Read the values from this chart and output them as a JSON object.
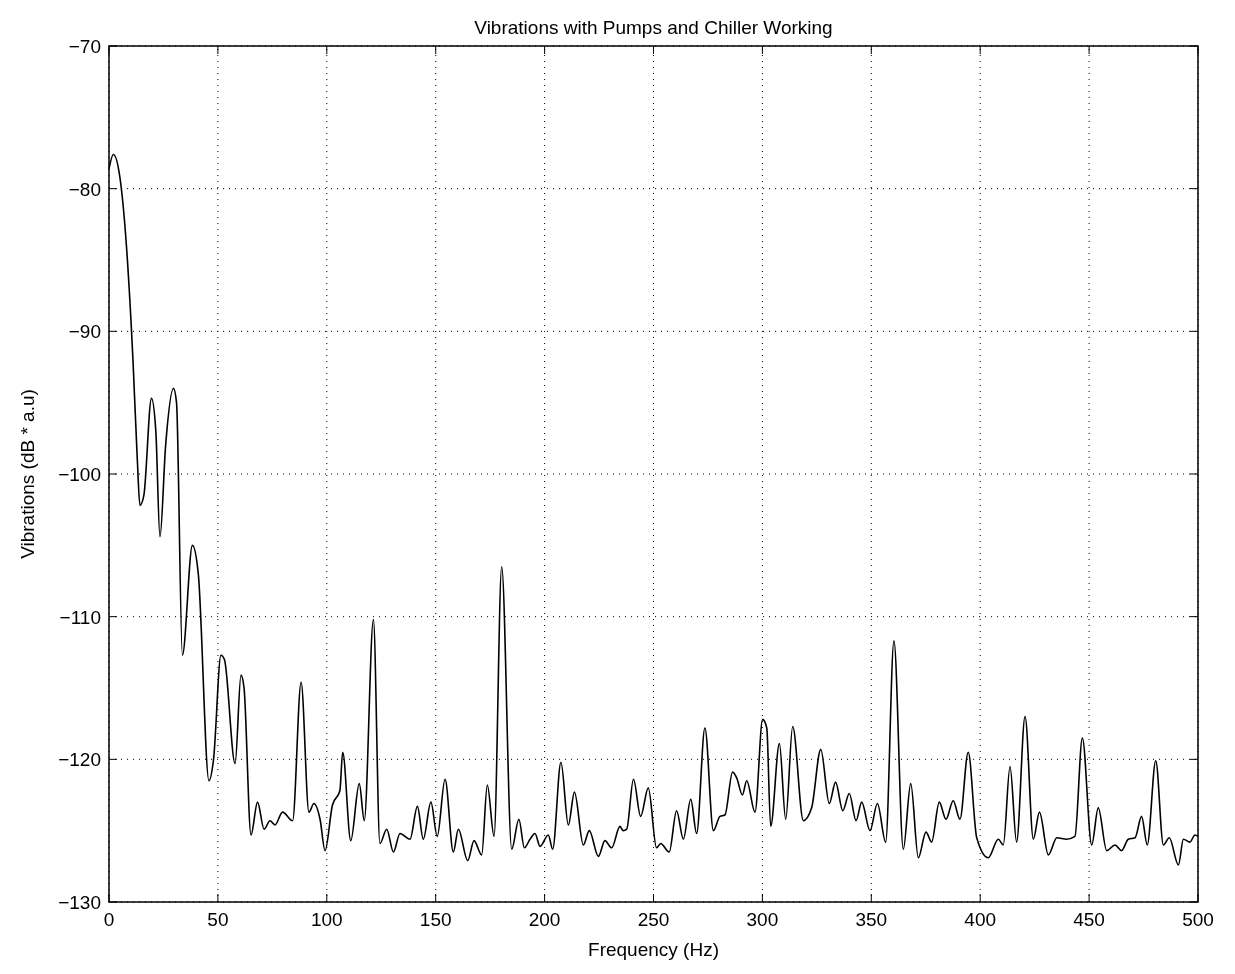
{
  "chart_data": {
    "type": "line",
    "title": "Vibrations with Pumps and Chiller Working",
    "xlabel": "Frequency (Hz)",
    "ylabel": "Vibrations (dB * a.u)",
    "xlim": [
      0,
      500
    ],
    "xticks": [
      0,
      50,
      100,
      150,
      200,
      250,
      300,
      350,
      400,
      450,
      500
    ],
    "ylim": [
      -130,
      -70
    ],
    "yticks": [
      -130,
      -120,
      -110,
      -100,
      -90,
      -80,
      -70
    ],
    "grid": true,
    "marker": "none",
    "line_style": "solid",
    "series": [
      {
        "color": "#000000",
        "x": [
          0,
          2,
          5,
          8,
          11,
          13,
          14.2,
          16,
          19.5,
          21.5,
          23.4,
          26,
          29.6,
          31,
          33.7,
          38.3,
          41,
          45.9,
          48,
          51.4,
          53,
          57.9,
          60.6,
          62,
          65.2,
          68.2,
          71.2,
          73.9,
          76.2,
          79.7,
          84.3,
          88.2,
          91.8,
          94.1,
          96.9,
          99.2,
          102.6,
          106,
          107.3,
          111,
          114.9,
          117.2,
          121.4,
          124.4,
          127.5,
          130.6,
          133.6,
          138.2,
          141.6,
          144.3,
          147.8,
          150.7,
          154.3,
          158.1,
          160.4,
          164.7,
          167.6,
          171.1,
          173.7,
          176.8,
          180.3,
          184.9,
          188.2,
          190.7,
          193.3,
          195.6,
          197.9,
          201.7,
          203.7,
          207.5,
          210.9,
          213.7,
          217.8,
          220.5,
          224.7,
          227.7,
          230.8,
          234.6,
          236.1,
          237.7,
          240.8,
          244.1,
          247.6,
          251.4,
          253.3,
          257.2,
          260.6,
          263.7,
          267.1,
          269.8,
          273.6,
          277.5,
          280.5,
          282.8,
          286.3,
          288.2,
          290.8,
          292.8,
          296.6,
          300.1,
          302,
          303.8,
          307.8,
          310.7,
          313.9,
          318.8,
          322.6,
          326.8,
          330.7,
          333.6,
          336.9,
          339.9,
          343,
          345.6,
          349.4,
          352.8,
          356.6,
          360.4,
          364.7,
          368.1,
          371.6,
          375.1,
          377.7,
          381.2,
          384.3,
          387.6,
          390.7,
          394.5,
          398.4,
          403.7,
          408.3,
          410.6,
          413.7,
          416.7,
          420.6,
          424.4,
          427.2,
          431.3,
          435.2,
          439.7,
          443.5,
          446.9,
          451.2,
          454.2,
          458.1,
          461.9,
          464.9,
          468,
          471.1,
          474.1,
          476.7,
          480.6,
          484.1,
          486.8,
          491,
          493.3,
          496.3,
          498.6,
          500
        ],
        "values": [
          -78.6,
          -77.6,
          -79.2,
          -84,
          -92,
          -99,
          -102.2,
          -101.5,
          -94.7,
          -97,
          -104.4,
          -98,
          -94,
          -95,
          -112.7,
          -105,
          -107,
          -121.5,
          -120,
          -112.7,
          -113,
          -120.3,
          -114.1,
          -115,
          -125.3,
          -123,
          -124.9,
          -124.3,
          -124.6,
          -123.7,
          -124.3,
          -114.6,
          -123.7,
          -123.1,
          -124.2,
          -126.4,
          -123.2,
          -122.2,
          -119.5,
          -125.7,
          -121.7,
          -124.3,
          -110.2,
          -125.9,
          -124.9,
          -126.5,
          -125.2,
          -125.6,
          -123.3,
          -125.6,
          -123,
          -125.4,
          -121.4,
          -126.5,
          -124.9,
          -127.1,
          -125.7,
          -126.7,
          -121.8,
          -125.4,
          -106.5,
          -126.3,
          -124.2,
          -126.2,
          -125.6,
          -125.2,
          -126.1,
          -125.3,
          -126.3,
          -120.2,
          -124.6,
          -122.3,
          -126,
          -125,
          -126.8,
          -125.7,
          -126.2,
          -124.7,
          -125,
          -124.9,
          -121.4,
          -124,
          -122,
          -126.2,
          -125.9,
          -126.5,
          -123.6,
          -125.6,
          -122.8,
          -125.2,
          -117.8,
          -125,
          -124,
          -123.9,
          -120.9,
          -121.3,
          -122.5,
          -121.5,
          -123.7,
          -117.2,
          -117.8,
          -124.7,
          -118.9,
          -124.2,
          -117.7,
          -124.3,
          -123.4,
          -119.3,
          -123.1,
          -121.6,
          -123.6,
          -122.4,
          -124.3,
          -123,
          -125,
          -123.1,
          -125.8,
          -111.7,
          -126.3,
          -121.7,
          -126.9,
          -125.1,
          -125.8,
          -123,
          -124.2,
          -122.9,
          -124.2,
          -119.5,
          -125.5,
          -126.9,
          -125.6,
          -126,
          -120.5,
          -125.8,
          -117,
          -125.6,
          -123.7,
          -126.7,
          -125.5,
          -125.6,
          -125.4,
          -118.5,
          -126,
          -123.4,
          -126.4,
          -126,
          -126.4,
          -125.6,
          -125.5,
          -124,
          -126,
          -120.1,
          -126,
          -125.5,
          -127.4,
          -125.6,
          -125.8,
          -125.3,
          -125.4
        ]
      }
    ]
  }
}
